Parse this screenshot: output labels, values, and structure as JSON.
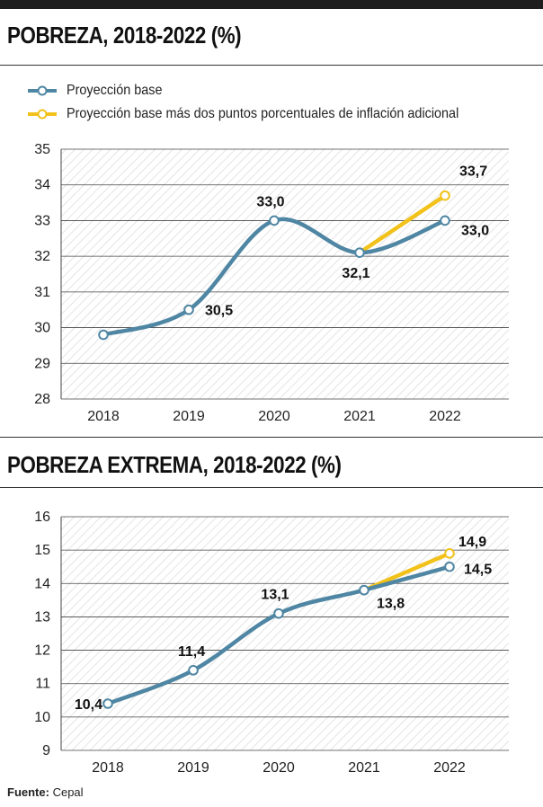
{
  "chart_data": [
    {
      "type": "line",
      "title": "POBREZA, 2018-2022 (%)",
      "categories": [
        "2018",
        "2019",
        "2020",
        "2021",
        "2022"
      ],
      "ylim": [
        28,
        35
      ],
      "yticks": [
        28,
        29,
        30,
        31,
        32,
        33,
        34,
        35
      ],
      "series": [
        {
          "name": "Proyección base",
          "color": "#4f86a3",
          "x": [
            "2018",
            "2019",
            "2020",
            "2021",
            "2022"
          ],
          "values": [
            29.8,
            30.5,
            33.0,
            32.1,
            33.0
          ],
          "labels": [
            "",
            "30,5",
            "33,0",
            "32,1",
            "33,0"
          ]
        },
        {
          "name": "Proyección base más dos puntos porcentuales de inflación adicional",
          "color": "#f2c21b",
          "x": [
            "2021",
            "2022"
          ],
          "values": [
            32.1,
            33.7
          ],
          "labels": [
            "",
            "33,7"
          ]
        }
      ]
    },
    {
      "type": "line",
      "title": "POBREZA EXTREMA, 2018-2022 (%)",
      "categories": [
        "2018",
        "2019",
        "2020",
        "2021",
        "2022"
      ],
      "ylim": [
        9,
        16
      ],
      "yticks": [
        9,
        10,
        11,
        12,
        13,
        14,
        15,
        16
      ],
      "series": [
        {
          "name": "Proyección base",
          "color": "#4f86a3",
          "x": [
            "2018",
            "2019",
            "2020",
            "2021",
            "2022"
          ],
          "values": [
            10.4,
            11.4,
            13.1,
            13.8,
            14.5
          ],
          "labels": [
            "10,4",
            "11,4",
            "13,1",
            "13,8",
            "14,5"
          ]
        },
        {
          "name": "Proyección base más dos puntos porcentuales de inflación adicional",
          "color": "#f2c21b",
          "x": [
            "2021",
            "2022"
          ],
          "values": [
            13.8,
            14.9
          ],
          "labels": [
            "",
            "14,9"
          ]
        }
      ]
    }
  ],
  "source": {
    "label": "Fuente:",
    "text": "Cepal"
  }
}
